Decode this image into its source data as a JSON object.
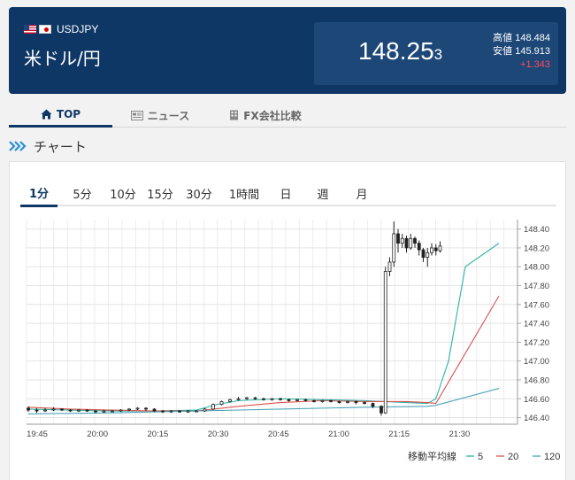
{
  "header": {
    "pair_code": "USDJPY",
    "pair_name": "米ドル/円",
    "price_main": "148.25",
    "price_small": "3",
    "high_label": "高値",
    "high_value": "148.484",
    "low_label": "安値",
    "low_value": "145.913",
    "change": "+1.343",
    "change_color": "#ff4a5a",
    "bg_color": "#0f3766"
  },
  "tabs": [
    {
      "label": "TOP",
      "icon": "home-icon",
      "active": true
    },
    {
      "label": "ニュース",
      "icon": "newspaper-icon",
      "active": false
    },
    {
      "label": "FX会社比較",
      "icon": "building-icon",
      "active": false
    }
  ],
  "section": {
    "title": "チャート",
    "icon": "double-chevron-right-icon"
  },
  "periods": [
    {
      "label": "1分",
      "active": true
    },
    {
      "label": "5分"
    },
    {
      "label": "10分"
    },
    {
      "label": "15分"
    },
    {
      "label": "30分"
    },
    {
      "label": "1時間"
    },
    {
      "label": "日"
    },
    {
      "label": "週"
    },
    {
      "label": "月"
    }
  ],
  "chart_data": {
    "type": "line",
    "y_ticks": [
      "148.40",
      "148.20",
      "148.00",
      "147.80",
      "147.60",
      "147.40",
      "147.20",
      "147.00",
      "146.80",
      "146.60",
      "146.40"
    ],
    "ylim": [
      146.33,
      148.5
    ],
    "x_ticks": [
      "19:45",
      "20:00",
      "20:15",
      "20:30",
      "20:45",
      "21:00",
      "21:15",
      "21:30"
    ],
    "grid": true,
    "legend_title": "移動平均線",
    "series": [
      {
        "name": "5",
        "color": "#2bb3a3",
        "x": [
          0,
          10,
          20,
          30,
          40,
          45,
          50,
          60,
          70,
          80,
          90,
          95,
          97,
          100,
          104,
          112
        ],
        "values": [
          146.49,
          146.48,
          146.47,
          146.47,
          146.48,
          146.54,
          146.58,
          146.6,
          146.59,
          146.58,
          146.56,
          146.55,
          146.6,
          147.0,
          148.0,
          148.25
        ]
      },
      {
        "name": "20",
        "color": "#d9534f",
        "x": [
          0,
          10,
          20,
          30,
          40,
          50,
          60,
          70,
          80,
          90,
          95,
          97,
          112
        ],
        "values": [
          146.51,
          146.49,
          146.48,
          146.47,
          146.47,
          146.52,
          146.56,
          146.58,
          146.57,
          146.57,
          146.56,
          146.55,
          147.69
        ]
      },
      {
        "name": "120",
        "color": "#4aa3b8",
        "x": [
          0,
          20,
          40,
          60,
          80,
          95,
          97,
          112
        ],
        "values": [
          146.44,
          146.45,
          146.47,
          146.49,
          146.51,
          146.52,
          146.53,
          146.71
        ]
      }
    ],
    "candles": [
      [
        0,
        146.5,
        146.48,
        146.52,
        146.46
      ],
      [
        2,
        146.48,
        146.47,
        146.5,
        146.45
      ],
      [
        4,
        146.47,
        146.48,
        146.5,
        146.46
      ],
      [
        6,
        146.48,
        146.49,
        146.51,
        146.47
      ],
      [
        8,
        146.49,
        146.48,
        146.5,
        146.47
      ],
      [
        10,
        146.48,
        146.47,
        146.49,
        146.46
      ],
      [
        12,
        146.47,
        146.48,
        146.49,
        146.46
      ],
      [
        14,
        146.48,
        146.47,
        146.49,
        146.46
      ],
      [
        16,
        146.47,
        146.46,
        146.48,
        146.45
      ],
      [
        18,
        146.46,
        146.47,
        146.48,
        146.45
      ],
      [
        20,
        146.47,
        146.47,
        146.48,
        146.46
      ],
      [
        22,
        146.47,
        146.48,
        146.49,
        146.46
      ],
      [
        24,
        146.48,
        146.49,
        146.5,
        146.47
      ],
      [
        26,
        146.49,
        146.5,
        146.51,
        146.48
      ],
      [
        28,
        146.5,
        146.49,
        146.51,
        146.47
      ],
      [
        30,
        146.49,
        146.47,
        146.5,
        146.46
      ],
      [
        32,
        146.47,
        146.46,
        146.48,
        146.45
      ],
      [
        34,
        146.46,
        146.47,
        146.48,
        146.45
      ],
      [
        36,
        146.47,
        146.46,
        146.48,
        146.45
      ],
      [
        38,
        146.46,
        146.47,
        146.48,
        146.45
      ],
      [
        40,
        146.47,
        146.47,
        146.48,
        146.46
      ],
      [
        42,
        146.47,
        146.49,
        146.5,
        146.46
      ],
      [
        44,
        146.49,
        146.54,
        146.55,
        146.48
      ],
      [
        46,
        146.54,
        146.57,
        146.58,
        146.53
      ],
      [
        48,
        146.57,
        146.59,
        146.6,
        146.56
      ],
      [
        50,
        146.59,
        146.6,
        146.62,
        146.58
      ],
      [
        52,
        146.6,
        146.61,
        146.62,
        146.59
      ],
      [
        54,
        146.61,
        146.6,
        146.62,
        146.59
      ],
      [
        56,
        146.6,
        146.59,
        146.61,
        146.58
      ],
      [
        58,
        146.59,
        146.6,
        146.61,
        146.58
      ],
      [
        60,
        146.6,
        146.59,
        146.61,
        146.58
      ],
      [
        62,
        146.59,
        146.58,
        146.6,
        146.57
      ],
      [
        64,
        146.58,
        146.59,
        146.6,
        146.57
      ],
      [
        66,
        146.59,
        146.58,
        146.6,
        146.57
      ],
      [
        68,
        146.58,
        146.57,
        146.59,
        146.56
      ],
      [
        70,
        146.57,
        146.58,
        146.59,
        146.56
      ],
      [
        72,
        146.58,
        146.57,
        146.59,
        146.56
      ],
      [
        74,
        146.57,
        146.56,
        146.58,
        146.55
      ],
      [
        76,
        146.56,
        146.57,
        146.58,
        146.55
      ],
      [
        78,
        146.57,
        146.56,
        146.58,
        146.54
      ],
      [
        80,
        146.56,
        146.55,
        146.57,
        146.54
      ],
      [
        82,
        146.55,
        146.52,
        146.56,
        146.5
      ],
      [
        84,
        146.52,
        146.45,
        146.53,
        146.42
      ],
      [
        85,
        146.45,
        147.95,
        148.0,
        146.44
      ],
      [
        86,
        147.95,
        148.05,
        148.1,
        147.9
      ],
      [
        87,
        148.05,
        148.35,
        148.48,
        148.0
      ],
      [
        88,
        148.35,
        148.25,
        148.4,
        148.15
      ],
      [
        89,
        148.25,
        148.3,
        148.35,
        148.2
      ],
      [
        90,
        148.3,
        148.2,
        148.33,
        148.15
      ],
      [
        91,
        148.2,
        148.3,
        148.35,
        148.18
      ],
      [
        92,
        148.3,
        148.25,
        148.32,
        148.2
      ],
      [
        93,
        148.25,
        148.18,
        148.28,
        148.12
      ],
      [
        94,
        148.18,
        148.1,
        148.2,
        148.05
      ],
      [
        95,
        148.1,
        148.15,
        148.2,
        148.0
      ],
      [
        96,
        148.15,
        148.2,
        148.25,
        148.12
      ],
      [
        97,
        148.2,
        148.17,
        148.24,
        148.12
      ],
      [
        98,
        148.17,
        148.22,
        148.27,
        148.15
      ]
    ]
  }
}
